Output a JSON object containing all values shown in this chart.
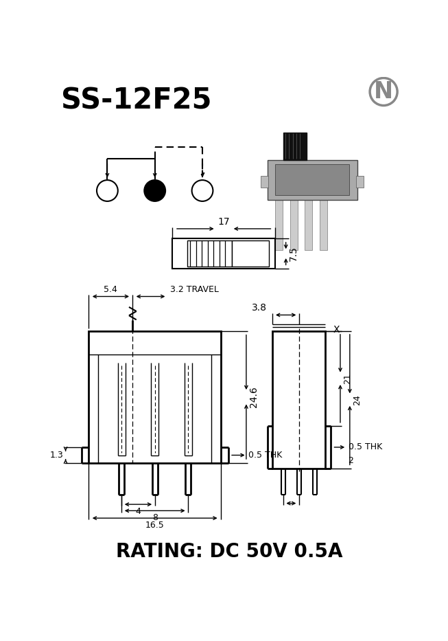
{
  "title": "SS-12F25",
  "rating_text": "RATING: DC 50V 0.5A",
  "bg_color": "#ffffff",
  "line_color": "#000000",
  "dim_54": "5.4",
  "dim_32": "3.2 TRAVEL",
  "dim_246": "24.6",
  "dim_13": "1.3",
  "dim_05thk": "0.5 THK",
  "dim_4": "4",
  "dim_8": "8",
  "dim_165": "16.5",
  "dim_17": "17",
  "dim_75": "7.5",
  "dim_38": "3.8",
  "dim_21": "21",
  "dim_24": "24",
  "dim_05thk2": "0.5 THK",
  "dim_2": "2",
  "dim_x": "X",
  "logo_color": "#888888"
}
